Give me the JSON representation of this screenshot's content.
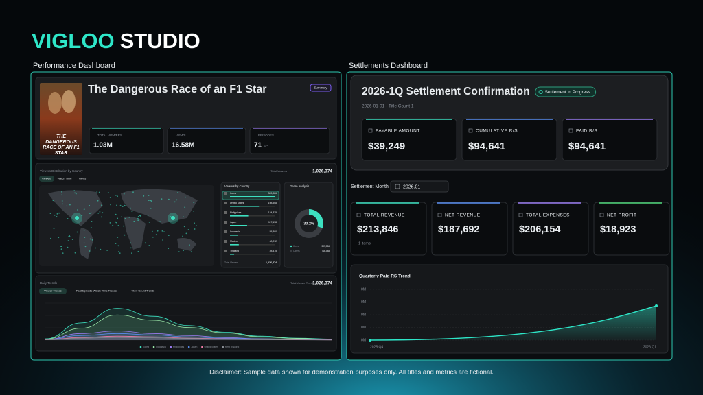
{
  "header": {
    "brand_accent": "VIGLOO",
    "brand": "STUDIO"
  },
  "performance": {
    "label": "Performance Dashboard",
    "title_card": {
      "poster_text": "THE DANGEROUS RACE OF AN F1 STAR",
      "title": "The Dangerous Race of an F1 Star",
      "summary_button": "Summary",
      "stats": [
        {
          "label": "TOTAL VIEWERS",
          "value": "1.03M"
        },
        {
          "label": "VIEWS",
          "value": "16.58M"
        },
        {
          "label": "EPISODES",
          "value": "71",
          "unit": "EP"
        }
      ]
    },
    "map_panel": {
      "title": "Viewers Distribution by Country",
      "total_label": "Total Viewers",
      "total": "1,026,374",
      "tabs": [
        "Viewers",
        "Watch Time",
        "Views"
      ],
      "country_list": {
        "title": "Viewers by Country",
        "rows": [
          {
            "name": "Korea",
            "value": 309986,
            "label": "309,986"
          },
          {
            "name": "United States",
            "value": 198508,
            "label": "198,508"
          },
          {
            "name": "Philippines",
            "value": 124835,
            "label": "124,835"
          },
          {
            "name": "Japan",
            "value": 117198,
            "label": "117,198"
          },
          {
            "name": "Indonesia",
            "value": 55300,
            "label": "55,300"
          },
          {
            "name": "Mexico",
            "value": 60212,
            "label": "60,212"
          },
          {
            "name": "Thailand",
            "value": 28475,
            "label": "28,475"
          }
        ],
        "footer_label": "Total Viewers",
        "footer_value": "1,026,374"
      },
      "genre": {
        "title": "Genre Analysis",
        "chart_data": {
          "type": "pie",
          "values": [
            30.2,
            69.8
          ],
          "colors": [
            "#3de0c0",
            "#3a3d42"
          ],
          "center_label": "30.2%"
        },
        "legend": [
          {
            "name": "Korea",
            "value": "309,986"
          },
          {
            "name": "Others",
            "value": "716,388"
          }
        ]
      }
    },
    "trend_panel": {
      "title": "Daily Trends",
      "total_label": "Total Viewer Trends",
      "total": "1,026,374",
      "tabs": [
        "Viewer Trends",
        "Paid Episode Watch Time Trends",
        "View Count Trends"
      ],
      "chart_data": {
        "type": "area",
        "ylim": [
          0,
          6000
        ],
        "series": [
          {
            "name": "Korea",
            "color": "#3de0c0",
            "values": [
              200,
              2600,
              4800,
              3600,
              2200,
              1200,
              600,
              300,
              150
            ]
          },
          {
            "name": "Indonesia",
            "color": "#9be8a8",
            "values": [
              150,
              1800,
              3800,
              3000,
              1900,
              1100,
              500,
              250,
              100
            ]
          },
          {
            "name": "Philippines",
            "color": "#9a7cf0",
            "values": [
              100,
              1000,
              1400,
              1000,
              700,
              400,
              200,
              100,
              50
            ]
          },
          {
            "name": "Japan",
            "color": "#5b8ff0",
            "values": [
              80,
              700,
              1000,
              800,
              500,
              300,
              150,
              80,
              40
            ]
          },
          {
            "name": "United States",
            "color": "#f07ca8",
            "values": [
              60,
              400,
              600,
              500,
              300,
              200,
              100,
              50,
              30
            ]
          },
          {
            "name": "Rest of World",
            "color": "#8a8f96",
            "values": [
              50,
              300,
              400,
              350,
              250,
              150,
              80,
              40,
              20
            ]
          }
        ]
      }
    }
  },
  "settlements": {
    "label": "Settlements Dashboard",
    "confirmation": {
      "title": "2026-1Q Settlement Confirmation",
      "status": "Settlement In Progress",
      "subtitle": "2026-01-01 · Title Count 1",
      "cards": [
        {
          "label": "PAYABLE AMOUNT",
          "value": "$39,249",
          "color": "#3de0c0"
        },
        {
          "label": "CUMULATIVE R/S",
          "value": "$94,641",
          "color": "#5b8ff0"
        },
        {
          "label": "PAID R/S",
          "value": "$94,641",
          "color": "#9a7cf0"
        }
      ]
    },
    "month_label": "Settlement Month",
    "month": "2026.01",
    "summary": [
      {
        "label": "TOTAL REVENUE",
        "value": "$213,846",
        "note": "1 items",
        "color": "#3de0c0"
      },
      {
        "label": "NET REVENUE",
        "value": "$187,692",
        "color": "#5b8ff0"
      },
      {
        "label": "TOTAL EXPENSES",
        "value": "$206,154",
        "color": "#9a7cf0"
      },
      {
        "label": "NET PROFIT",
        "value": "$18,923",
        "color": "#4fd67a"
      }
    ],
    "chart_data": {
      "type": "line",
      "title": "Quarterly Paid RS Trend",
      "x": [
        "2025 Q4",
        "2026 Q1"
      ],
      "series": [
        {
          "color": "#2ee6c8",
          "values": [
            0,
            94641
          ]
        }
      ],
      "ylim": [
        0,
        140000
      ],
      "yticks": [
        {
          "value": 0,
          "label": "0M"
        },
        {
          "value": 35000,
          "label": "0M"
        },
        {
          "value": 70000,
          "label": "0M"
        },
        {
          "value": 105000,
          "label": "0M"
        },
        {
          "value": 140000,
          "label": "0M"
        }
      ],
      "grid": true
    }
  },
  "footer": {
    "disclaimer": "Disclaimer: Sample data shown for demonstration purposes only. All titles and metrics are fictional."
  }
}
